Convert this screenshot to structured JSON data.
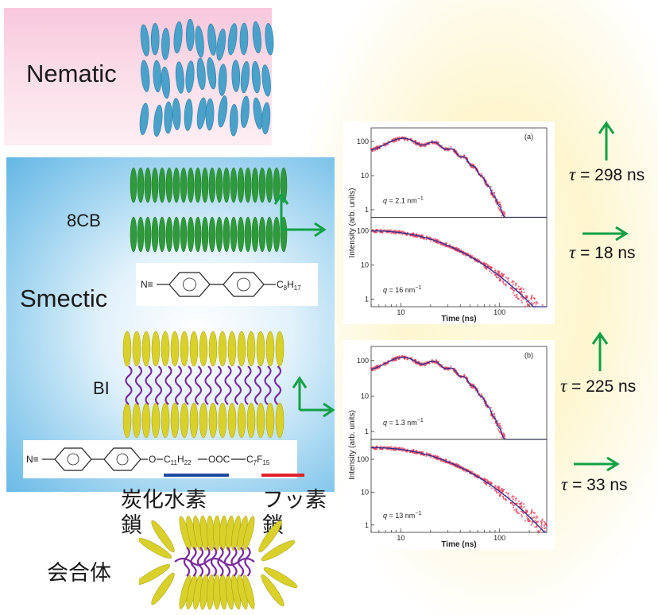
{
  "labels": {
    "nematic": "Nematic",
    "smectic": "Smectic",
    "cb8": "8CB",
    "bi": "BI",
    "hydrocarbon_chain_line1": "炭化水素",
    "hydrocarbon_chain_line2": "鎖",
    "fluoro_chain_line1": "フッ素",
    "fluoro_chain_line2": "鎖",
    "aggregate": "会合体"
  },
  "chem_8cb": {
    "nitrile": "N≡",
    "alkyl": "C",
    "alkyl_sub": "8",
    "alkyl_h": "H",
    "alkyl_sub2": "17"
  },
  "chem_bi": {
    "nitrile": "N≡",
    "o": "O",
    "c11": "C",
    "c11_sub": "11",
    "h22": "H",
    "h22_sub": "22",
    "ester": "OOC",
    "c7": "C",
    "c7_sub": "7",
    "f15": "F",
    "f15_sub": "15"
  },
  "relaxation_times": [
    {
      "symbol": "τ",
      "text": " = 298 ns",
      "direction": "up"
    },
    {
      "symbol": "τ",
      "text": " = 18 ns",
      "direction": "right"
    },
    {
      "symbol": "τ",
      "text": " = 225 ns",
      "direction": "up"
    },
    {
      "symbol": "τ",
      "text": " = 33 ns",
      "direction": "right"
    }
  ],
  "colors": {
    "arrow_green": "#11a045",
    "data_red": "#e23a5a",
    "fit_blue": "#2a2f8f",
    "cb8_green": "#2e9a3a",
    "bi_yellow": "#d9d12a",
    "chain_purple": "#7a2c9e",
    "nematic_blue": "#4aa1c9",
    "underline_blue": "#1e4aa0",
    "underline_red": "#e0202a"
  },
  "chart_data": [
    {
      "type": "scatter",
      "panel": "(a)",
      "xlabel": "Time (ns)",
      "ylabel": "Intensity (arb. units)",
      "xscale": "log",
      "yscale": "log",
      "xticks": [
        "10",
        "100"
      ],
      "yticks": [
        "1",
        "10",
        "100"
      ],
      "subplots": [
        {
          "annotation": "q = 2.1 nm",
          "annotation_sup": "−1",
          "behavior": "damped oscillation",
          "x": [
            5,
            7,
            10,
            15,
            20,
            30,
            50,
            70,
            100,
            150,
            200,
            250
          ],
          "y": [
            100,
            150,
            80,
            30,
            70,
            45,
            40,
            30,
            15,
            5,
            1.5,
            0.8
          ]
        },
        {
          "annotation": "q = 16 nm",
          "annotation_sup": "−1",
          "behavior": "monotonic decay",
          "x": [
            5,
            10,
            20,
            40,
            70,
            100,
            150,
            200,
            250
          ],
          "y": [
            100,
            80,
            50,
            25,
            10,
            6,
            3,
            1.5,
            1
          ]
        }
      ]
    },
    {
      "type": "scatter",
      "panel": "(b)",
      "xlabel": "Time (ns)",
      "ylabel": "Intensity (arb. units)",
      "xscale": "log",
      "yscale": "log",
      "xticks": [
        "10",
        "100"
      ],
      "yticks": [
        "1",
        "10",
        "100"
      ],
      "subplots": [
        {
          "annotation": "q = 1.3 nm",
          "annotation_sup": "−1",
          "behavior": "damped oscillation",
          "x": [
            5,
            7,
            10,
            15,
            20,
            30,
            50,
            70,
            100,
            150,
            200,
            250
          ],
          "y": [
            100,
            110,
            30,
            60,
            25,
            40,
            28,
            20,
            10,
            4,
            1.2,
            0.8
          ]
        },
        {
          "annotation": "q = 13 nm",
          "annotation_sup": "−1",
          "behavior": "monotonic decay",
          "x": [
            5,
            10,
            20,
            40,
            70,
            100,
            150,
            200,
            250
          ],
          "y": [
            200,
            150,
            100,
            50,
            20,
            10,
            4,
            2,
            1
          ]
        }
      ]
    }
  ]
}
